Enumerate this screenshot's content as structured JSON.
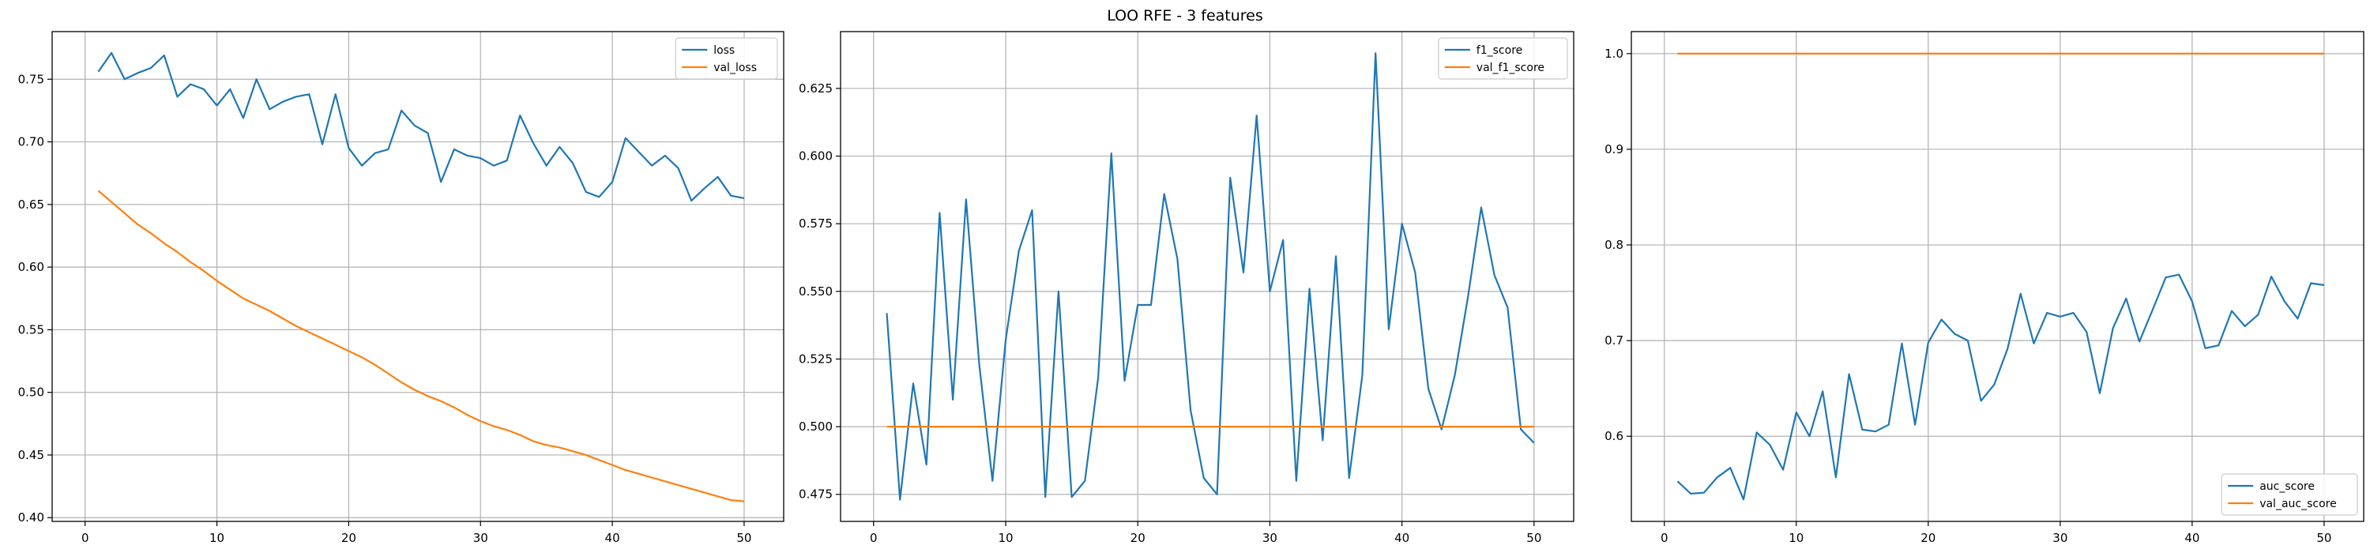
{
  "figure": {
    "title": "LOO RFE - 3 features"
  },
  "chart_data": [
    {
      "type": "line",
      "title": "",
      "xlabel": "",
      "ylabel": "",
      "xlim": [
        -2.5,
        53.0
      ],
      "ylim": [
        0.397,
        0.788
      ],
      "xticks": [
        0,
        10,
        20,
        30,
        40,
        50
      ],
      "yticks": [
        0.4,
        0.45,
        0.5,
        0.55,
        0.6,
        0.65,
        0.7,
        0.75
      ],
      "ytick_labels": [
        "0.40",
        "0.45",
        "0.50",
        "0.55",
        "0.60",
        "0.65",
        "0.70",
        "0.75"
      ],
      "grid": true,
      "legend_position": "top-right",
      "colors": [
        "#1f77b4",
        "#ff7f0e"
      ],
      "x": [
        1,
        2,
        3,
        4,
        5,
        6,
        7,
        8,
        9,
        10,
        11,
        12,
        13,
        14,
        15,
        16,
        17,
        18,
        19,
        20,
        21,
        22,
        23,
        24,
        25,
        26,
        27,
        28,
        29,
        30,
        31,
        32,
        33,
        34,
        35,
        36,
        37,
        38,
        39,
        40,
        41,
        42,
        43,
        44,
        45,
        46,
        47,
        48,
        49,
        50
      ],
      "series": [
        {
          "name": "loss",
          "values": [
            0.756,
            0.771,
            0.75,
            0.755,
            0.759,
            0.769,
            0.736,
            0.746,
            0.742,
            0.729,
            0.742,
            0.719,
            0.75,
            0.726,
            0.732,
            0.736,
            0.738,
            0.698,
            0.738,
            0.695,
            0.681,
            0.691,
            0.694,
            0.725,
            0.713,
            0.707,
            0.668,
            0.694,
            0.689,
            0.687,
            0.681,
            0.685,
            0.721,
            0.699,
            0.681,
            0.696,
            0.683,
            0.66,
            0.656,
            0.668,
            0.703,
            0.692,
            0.681,
            0.689,
            0.679,
            0.653,
            0.663,
            0.672,
            0.657,
            0.655
          ]
        },
        {
          "name": "val_loss",
          "values": [
            0.661,
            0.652,
            0.643,
            0.634,
            0.627,
            0.619,
            0.612,
            0.604,
            0.597,
            0.589,
            0.582,
            0.575,
            0.57,
            0.565,
            0.559,
            0.553,
            0.548,
            0.543,
            0.538,
            0.533,
            0.528,
            0.522,
            0.515,
            0.508,
            0.502,
            0.497,
            0.493,
            0.488,
            0.482,
            0.477,
            0.473,
            0.47,
            0.466,
            0.461,
            0.458,
            0.456,
            0.453,
            0.45,
            0.446,
            0.442,
            0.438,
            0.435,
            0.432,
            0.429,
            0.426,
            0.423,
            0.42,
            0.417,
            0.414,
            0.413
          ]
        }
      ]
    },
    {
      "type": "line",
      "title": "",
      "xlabel": "",
      "ylabel": "",
      "xlim": [
        -2.5,
        53.0
      ],
      "ylim": [
        0.465,
        0.646
      ],
      "xticks": [
        0,
        10,
        20,
        30,
        40,
        50
      ],
      "yticks": [
        0.475,
        0.5,
        0.525,
        0.55,
        0.575,
        0.6,
        0.625
      ],
      "ytick_labels": [
        "0.475",
        "0.500",
        "0.525",
        "0.550",
        "0.575",
        "0.600",
        "0.625"
      ],
      "grid": true,
      "legend_position": "top-right",
      "colors": [
        "#1f77b4",
        "#ff7f0e"
      ],
      "x": [
        1,
        2,
        3,
        4,
        5,
        6,
        7,
        8,
        9,
        10,
        11,
        12,
        13,
        14,
        15,
        16,
        17,
        18,
        19,
        20,
        21,
        22,
        23,
        24,
        25,
        26,
        27,
        28,
        29,
        30,
        31,
        32,
        33,
        34,
        35,
        36,
        37,
        38,
        39,
        40,
        41,
        42,
        43,
        44,
        45,
        46,
        47,
        48,
        49,
        50
      ],
      "series": [
        {
          "name": "f1_score",
          "values": [
            0.542,
            0.473,
            0.516,
            0.486,
            0.579,
            0.51,
            0.584,
            0.523,
            0.48,
            0.532,
            0.565,
            0.58,
            0.474,
            0.55,
            0.474,
            0.48,
            0.518,
            0.601,
            0.517,
            0.545,
            0.545,
            0.586,
            0.562,
            0.506,
            0.481,
            0.475,
            0.592,
            0.557,
            0.615,
            0.55,
            0.569,
            0.48,
            0.551,
            0.495,
            0.563,
            0.481,
            0.519,
            0.638,
            0.536,
            0.575,
            0.557,
            0.514,
            0.499,
            0.519,
            0.548,
            0.581,
            0.556,
            0.544,
            0.499,
            0.494
          ]
        },
        {
          "name": "val_f1_score",
          "values": [
            0.5,
            0.5,
            0.5,
            0.5,
            0.5,
            0.5,
            0.5,
            0.5,
            0.5,
            0.5,
            0.5,
            0.5,
            0.5,
            0.5,
            0.5,
            0.5,
            0.5,
            0.5,
            0.5,
            0.5,
            0.5,
            0.5,
            0.5,
            0.5,
            0.5,
            0.5,
            0.5,
            0.5,
            0.5,
            0.5,
            0.5,
            0.5,
            0.5,
            0.5,
            0.5,
            0.5,
            0.5,
            0.5,
            0.5,
            0.5,
            0.5,
            0.5,
            0.5,
            0.5,
            0.5,
            0.5,
            0.5,
            0.5,
            0.5,
            0.5
          ]
        }
      ]
    },
    {
      "type": "line",
      "title": "",
      "xlabel": "",
      "ylabel": "",
      "xlim": [
        -2.5,
        53.0
      ],
      "ylim": [
        0.511,
        1.023
      ],
      "xticks": [
        0,
        10,
        20,
        30,
        40,
        50
      ],
      "yticks": [
        0.6,
        0.7,
        0.8,
        0.9,
        1.0
      ],
      "ytick_labels": [
        "0.6",
        "0.7",
        "0.8",
        "0.9",
        "1.0"
      ],
      "grid": true,
      "legend_position": "bottom-right",
      "colors": [
        "#1f77b4",
        "#ff7f0e"
      ],
      "x": [
        1,
        2,
        3,
        4,
        5,
        6,
        7,
        8,
        9,
        10,
        11,
        12,
        13,
        14,
        15,
        16,
        17,
        18,
        19,
        20,
        21,
        22,
        23,
        24,
        25,
        26,
        27,
        28,
        29,
        30,
        31,
        32,
        33,
        34,
        35,
        36,
        37,
        38,
        39,
        40,
        41,
        42,
        43,
        44,
        45,
        46,
        47,
        48,
        49,
        50
      ],
      "series": [
        {
          "name": "auc_score",
          "values": [
            0.553,
            0.54,
            0.541,
            0.557,
            0.567,
            0.534,
            0.604,
            0.591,
            0.565,
            0.625,
            0.6,
            0.647,
            0.557,
            0.665,
            0.607,
            0.605,
            0.612,
            0.697,
            0.612,
            0.698,
            0.722,
            0.707,
            0.7,
            0.637,
            0.654,
            0.691,
            0.749,
            0.697,
            0.729,
            0.725,
            0.729,
            0.709,
            0.645,
            0.713,
            0.744,
            0.699,
            0.732,
            0.766,
            0.769,
            0.741,
            0.692,
            0.695,
            0.731,
            0.715,
            0.727,
            0.767,
            0.741,
            0.723,
            0.76,
            0.758
          ]
        },
        {
          "name": "val_auc_score",
          "values": [
            1.0,
            1.0,
            1.0,
            1.0,
            1.0,
            1.0,
            1.0,
            1.0,
            1.0,
            1.0,
            1.0,
            1.0,
            1.0,
            1.0,
            1.0,
            1.0,
            1.0,
            1.0,
            1.0,
            1.0,
            1.0,
            1.0,
            1.0,
            1.0,
            1.0,
            1.0,
            1.0,
            1.0,
            1.0,
            1.0,
            1.0,
            1.0,
            1.0,
            1.0,
            1.0,
            1.0,
            1.0,
            1.0,
            1.0,
            1.0,
            1.0,
            1.0,
            1.0,
            1.0,
            1.0,
            1.0,
            1.0,
            1.0,
            1.0,
            1.0
          ]
        }
      ]
    }
  ]
}
